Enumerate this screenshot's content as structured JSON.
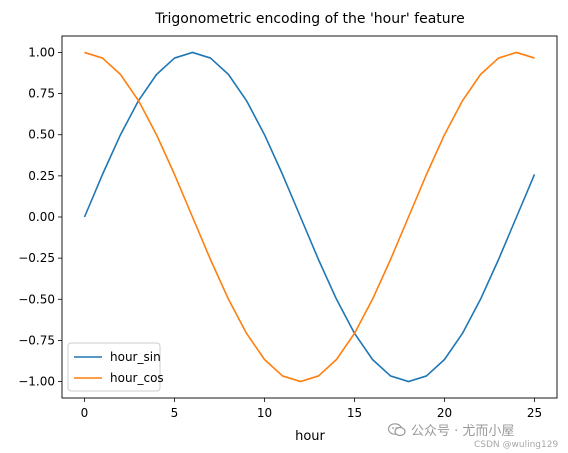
{
  "chart_data": {
    "type": "line",
    "title": "Trigonometric encoding of the 'hour' feature",
    "xlabel": "hour",
    "ylabel": "",
    "xlim": [
      -1.25,
      26.25
    ],
    "ylim": [
      -1.1,
      1.1
    ],
    "xticks": [
      0,
      5,
      10,
      15,
      20,
      25
    ],
    "xtick_labels": [
      "0",
      "5",
      "10",
      "15",
      "20",
      "25"
    ],
    "yticks": [
      1.0,
      0.75,
      0.5,
      0.25,
      0.0,
      -0.25,
      -0.5,
      -0.75,
      -1.0
    ],
    "ytick_labels": [
      "1.00",
      "0.75",
      "0.50",
      "0.25",
      "0.00",
      "−0.25",
      "−0.50",
      "−0.75",
      "−1.00"
    ],
    "grid": false,
    "legend_position": "lower-left",
    "x": [
      0,
      1,
      2,
      3,
      4,
      5,
      6,
      7,
      8,
      9,
      10,
      11,
      12,
      13,
      14,
      15,
      16,
      17,
      18,
      19,
      20,
      21,
      22,
      23,
      24,
      25
    ],
    "series": [
      {
        "name": "hour_sin",
        "color": "#1f77b4",
        "values": [
          0.0,
          0.259,
          0.5,
          0.707,
          0.866,
          0.966,
          1.0,
          0.966,
          0.866,
          0.707,
          0.5,
          0.259,
          0.0,
          -0.259,
          -0.5,
          -0.707,
          -0.866,
          -0.966,
          -1.0,
          -0.966,
          -0.866,
          -0.707,
          -0.5,
          -0.259,
          0.0,
          0.259
        ]
      },
      {
        "name": "hour_cos",
        "color": "#ff7f0e",
        "values": [
          1.0,
          0.966,
          0.866,
          0.707,
          0.5,
          0.259,
          0.0,
          -0.259,
          -0.5,
          -0.707,
          -0.866,
          -0.966,
          -1.0,
          -0.966,
          -0.866,
          -0.707,
          -0.5,
          -0.259,
          0.0,
          0.259,
          0.5,
          0.707,
          0.866,
          0.966,
          1.0,
          0.966
        ]
      }
    ]
  },
  "watermark": {
    "icon": "wechat-icon",
    "main_text": "公众号 · 尤而小屋",
    "sub_text": "CSDN @wuling129"
  }
}
